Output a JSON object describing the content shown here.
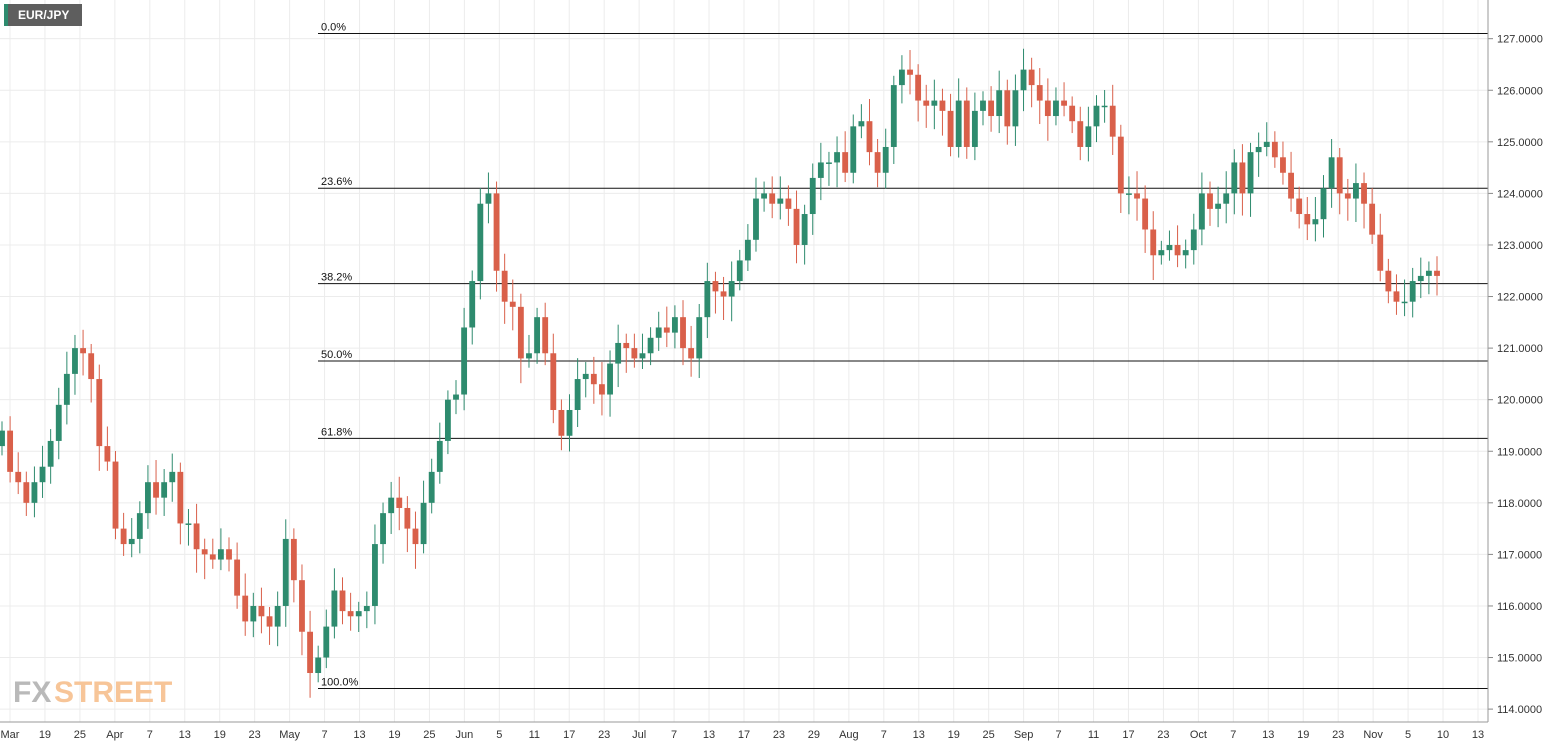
{
  "symbol": "EUR/JPY",
  "logo": {
    "fx": "FX",
    "street": "STREET"
  },
  "colors": {
    "bull": "#2e8b6e",
    "bear": "#d9604a",
    "grid": "#ececec",
    "fib_line": "#111111"
  },
  "chart_data": {
    "type": "candlestick",
    "title": "",
    "grid": true,
    "ylim": [
      113.75,
      127.75
    ],
    "y_ticks": [
      "114.0000",
      "115.0000",
      "116.0000",
      "117.0000",
      "118.0000",
      "119.0000",
      "120.0000",
      "121.0000",
      "122.0000",
      "123.0000",
      "124.0000",
      "125.0000",
      "126.0000",
      "127.0000"
    ],
    "x_ticks": [
      "Mar",
      "19",
      "25",
      "Apr",
      "7",
      "13",
      "19",
      "23",
      "May",
      "7",
      "13",
      "19",
      "25",
      "Jun",
      "5",
      "11",
      "17",
      "23",
      "Jul",
      "7",
      "13",
      "17",
      "23",
      "29",
      "Aug",
      "7",
      "13",
      "19",
      "25",
      "Sep",
      "7",
      "11",
      "17",
      "23",
      "Oct",
      "7",
      "13",
      "19",
      "23",
      "Nov",
      "5",
      "10",
      "13"
    ],
    "fib_levels": [
      {
        "label": "0.0%",
        "value": 127.1
      },
      {
        "label": "23.6%",
        "value": 124.1
      },
      {
        "label": "38.2%",
        "value": 122.25
      },
      {
        "label": "50.0%",
        "value": 120.75
      },
      {
        "label": "61.8%",
        "value": 119.25
      },
      {
        "label": "100.0%",
        "value": 114.4
      }
    ],
    "closes": [
      119.4,
      118.6,
      118.4,
      118.0,
      118.4,
      118.7,
      119.2,
      119.9,
      120.5,
      121.0,
      120.9,
      120.4,
      119.1,
      118.8,
      117.5,
      117.2,
      117.3,
      117.8,
      118.4,
      118.1,
      118.4,
      118.6,
      117.6,
      117.6,
      117.1,
      117.0,
      116.9,
      117.1,
      116.9,
      116.2,
      115.7,
      116.0,
      115.8,
      115.6,
      116.0,
      117.3,
      116.5,
      115.5,
      114.7,
      115.0,
      115.6,
      116.3,
      115.9,
      115.8,
      115.9,
      116.0,
      117.2,
      117.8,
      118.1,
      117.9,
      117.5,
      117.2,
      118.0,
      118.6,
      119.2,
      120.0,
      120.1,
      121.4,
      122.3,
      123.8,
      124.0,
      122.5,
      121.9,
      121.8,
      120.8,
      120.9,
      121.6,
      120.9,
      119.8,
      119.3,
      119.8,
      120.4,
      120.5,
      120.3,
      120.1,
      120.7,
      121.1,
      121.0,
      120.8,
      120.9,
      121.2,
      121.4,
      121.3,
      121.6,
      121.0,
      120.8,
      121.6,
      122.3,
      122.1,
      122.0,
      122.3,
      122.7,
      123.1,
      123.9,
      124.0,
      123.8,
      123.9,
      123.7,
      123.0,
      123.6,
      124.3,
      124.6,
      124.6,
      124.8,
      124.4,
      125.3,
      125.4,
      124.8,
      124.4,
      124.9,
      126.1,
      126.4,
      126.3,
      125.8,
      125.7,
      125.8,
      125.6,
      124.9,
      125.8,
      124.9,
      125.6,
      125.8,
      125.5,
      126.0,
      125.3,
      126.0,
      126.4,
      126.1,
      125.8,
      125.5,
      125.8,
      125.7,
      125.4,
      124.9,
      125.3,
      125.7,
      125.7,
      125.1,
      124.0,
      124.0,
      123.9,
      123.3,
      122.8,
      122.9,
      123.0,
      122.8,
      122.9,
      123.3,
      124.0,
      123.7,
      123.8,
      124.0,
      124.6,
      124.0,
      124.8,
      124.9,
      125.0,
      124.7,
      124.4,
      123.9,
      123.6,
      123.4,
      123.5,
      124.1,
      124.7,
      124.0,
      123.9,
      124.2,
      123.8,
      123.2,
      122.5,
      122.1,
      121.9,
      121.9,
      122.3,
      122.4,
      122.5,
      122.4
    ]
  }
}
